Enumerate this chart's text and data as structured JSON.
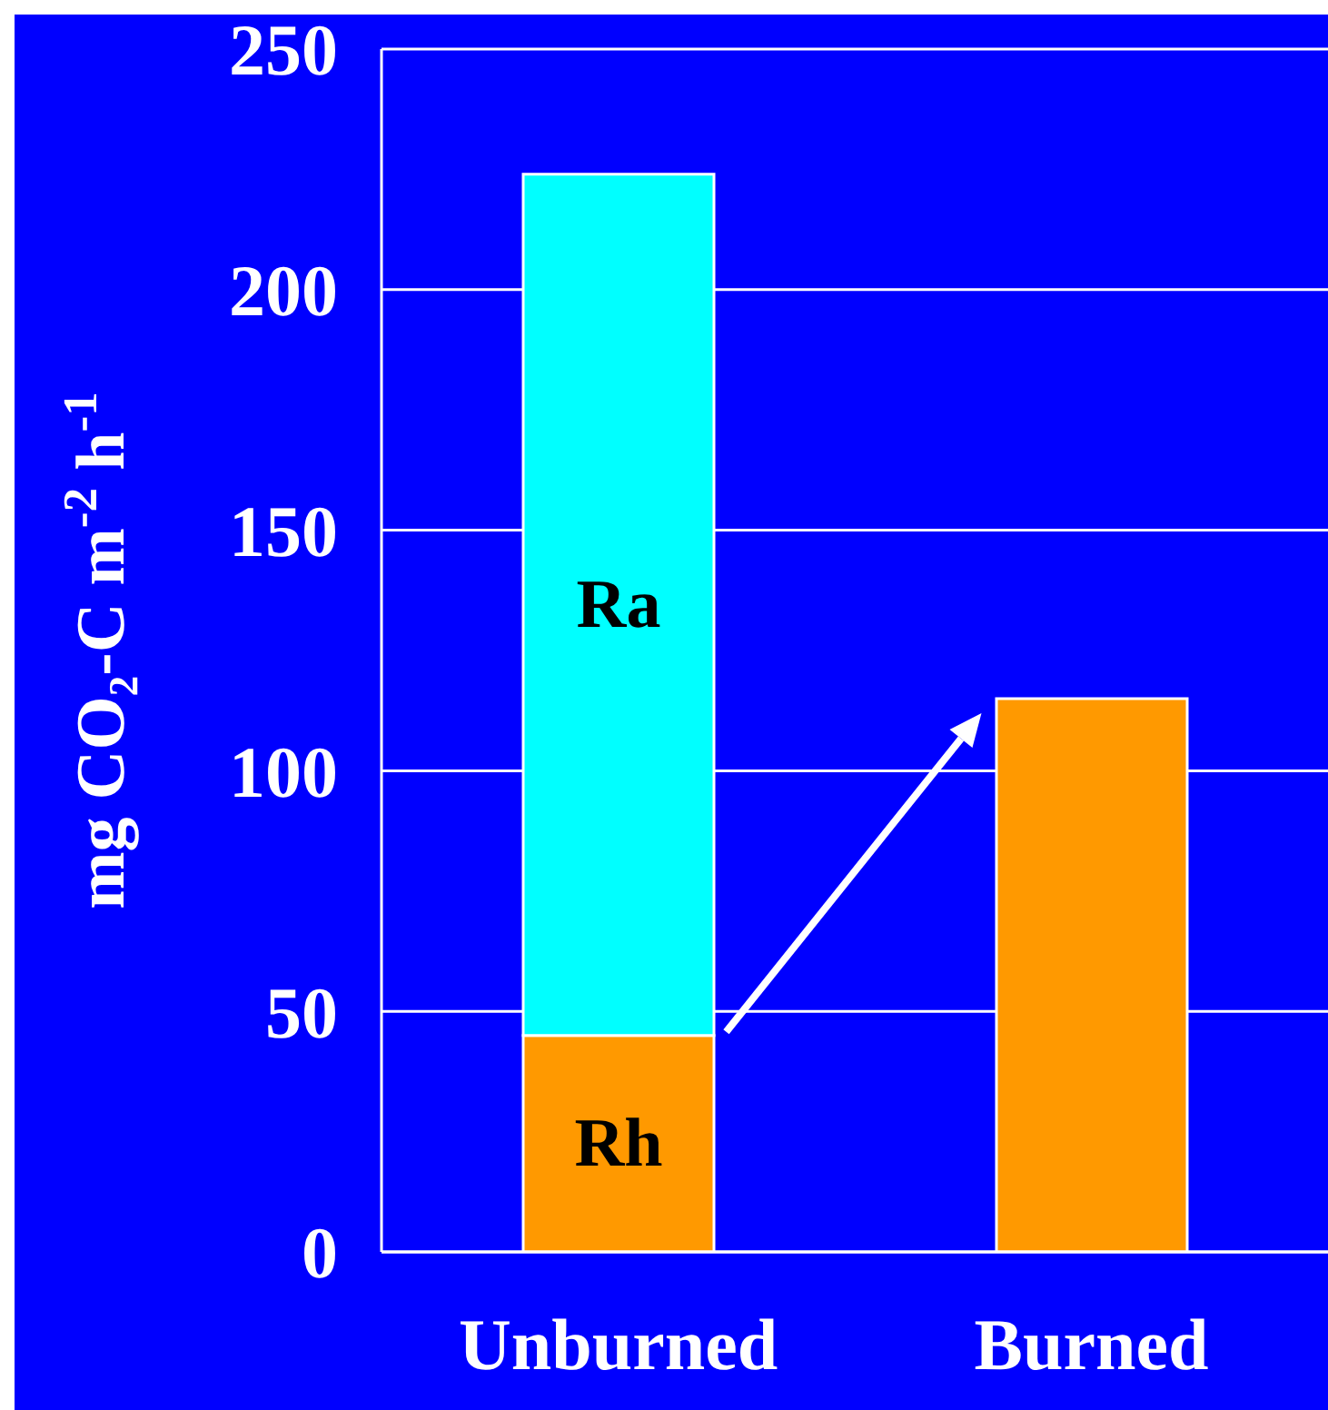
{
  "chart_data": {
    "type": "bar",
    "stacked": true,
    "categories": [
      "Unburned",
      "Burned"
    ],
    "series": [
      {
        "name": "Rh",
        "color": "#ff9900",
        "values": [
          45,
          115
        ]
      },
      {
        "name": "Ra",
        "color": "#00ffff",
        "values": [
          179,
          null
        ]
      }
    ],
    "ylabel": "mg CO₂-C m$^{-2}$ h$^{-1}$",
    "ylim": [
      0,
      250
    ],
    "yticks": [
      0,
      50,
      100,
      150,
      200,
      250
    ],
    "grid": "y",
    "legend": false
  }
}
